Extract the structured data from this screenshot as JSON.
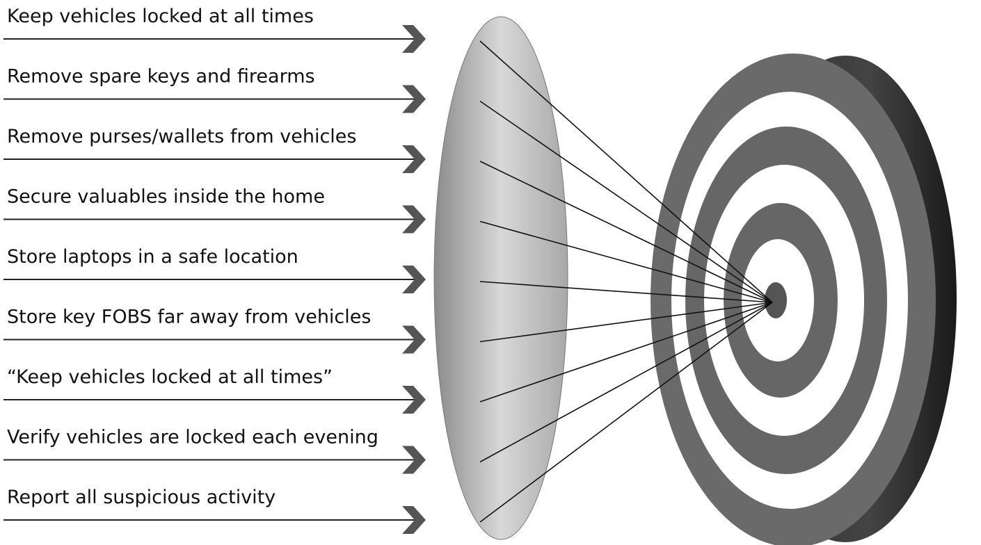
{
  "items": [
    "Keep vehicles locked at all times",
    "Remove spare keys and firearms",
    "Remove purses/wallets from vehicles",
    "Secure valuables inside the home",
    "Store laptops in a safe location",
    "Store key FOBS far away from vehicles",
    "“Keep vehicles locked at all times”",
    "Verify vehicles are locked each evening",
    "Report all suspicious activity"
  ]
}
